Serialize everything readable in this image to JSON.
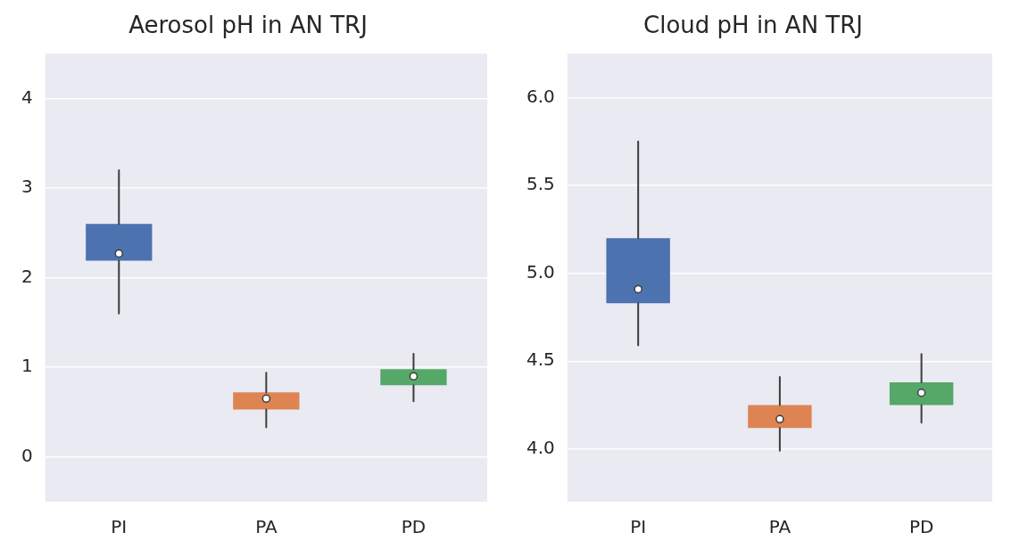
{
  "chart_data": [
    {
      "type": "box",
      "title": "Aerosol pH in AN TRJ",
      "categories": [
        "PI",
        "PA",
        "PD"
      ],
      "colors": [
        "#4c72b0",
        "#dd8452",
        "#55a868"
      ],
      "boxes": [
        {
          "low": 1.6,
          "q1": 2.19,
          "median": 2.27,
          "q3": 2.6,
          "high": 3.2
        },
        {
          "low": 0.33,
          "q1": 0.53,
          "median": 0.65,
          "q3": 0.72,
          "high": 0.94
        },
        {
          "low": 0.62,
          "q1": 0.8,
          "median": 0.9,
          "q3": 0.98,
          "high": 1.15
        }
      ],
      "ylim": [
        -0.5,
        4.5
      ],
      "yticks": [
        0,
        1,
        2,
        3,
        4
      ],
      "grid": "y"
    },
    {
      "type": "box",
      "title": "Cloud pH in AN TRJ",
      "categories": [
        "PI",
        "PA",
        "PD"
      ],
      "colors": [
        "#4c72b0",
        "#dd8452",
        "#55a868"
      ],
      "boxes": [
        {
          "low": 4.59,
          "q1": 4.83,
          "median": 4.91,
          "q3": 5.2,
          "high": 5.75
        },
        {
          "low": 3.99,
          "q1": 4.12,
          "median": 4.17,
          "q3": 4.25,
          "high": 4.41
        },
        {
          "low": 4.15,
          "q1": 4.25,
          "median": 4.32,
          "q3": 4.38,
          "high": 4.54
        }
      ],
      "ylim": [
        3.7,
        6.25
      ],
      "yticks": [
        {
          "value": 4,
          "label": "4.0"
        },
        {
          "value": 4.5,
          "label": "4.5"
        },
        {
          "value": 5,
          "label": "5.0"
        },
        {
          "value": 5.5,
          "label": "5.5"
        },
        {
          "value": 6,
          "label": "6.0"
        }
      ],
      "grid": "y"
    }
  ]
}
